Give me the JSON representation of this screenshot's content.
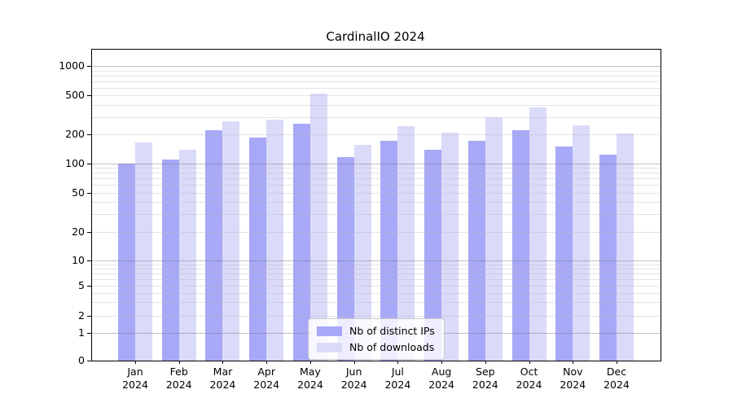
{
  "title": "CardinalIO 2024",
  "chart_data": {
    "type": "bar",
    "title": "CardinalIO 2024",
    "categories": [
      "Jan 2024",
      "Feb 2024",
      "Mar 2024",
      "Apr 2024",
      "May 2024",
      "Jun 2024",
      "Jul 2024",
      "Aug 2024",
      "Sep 2024",
      "Oct 2024",
      "Nov 2024",
      "Dec 2024"
    ],
    "series": [
      {
        "name": "Nb of distinct IPs",
        "color": "#a8a8f8",
        "values": [
          100,
          110,
          218,
          183,
          255,
          117,
          170,
          137,
          170,
          220,
          149,
          123
        ]
      },
      {
        "name": "Nb of downloads",
        "color": "#dadaf9",
        "values": [
          165,
          138,
          272,
          282,
          520,
          156,
          243,
          205,
          296,
          372,
          246,
          202
        ]
      }
    ],
    "xlabel": "",
    "ylabel": "",
    "yscale": "symlog",
    "y_ticks": [
      0,
      1,
      2,
      5,
      10,
      20,
      50,
      100,
      200,
      500,
      1000
    ],
    "ylim": [
      0,
      1400
    ],
    "grid": true,
    "legend_position": "lower-center"
  }
}
